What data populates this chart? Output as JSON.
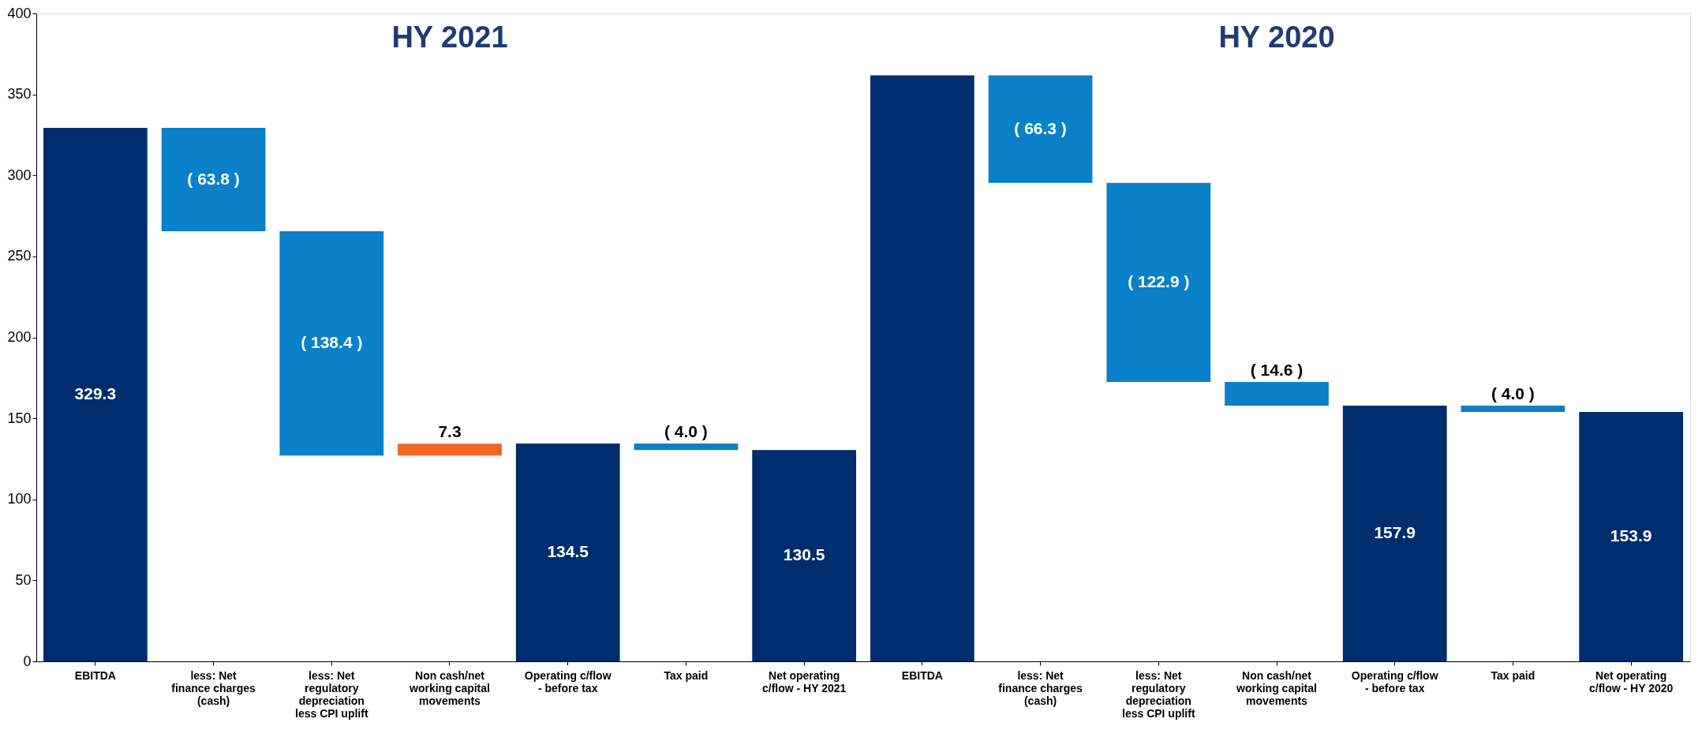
{
  "chart_data": {
    "type": "bar",
    "categories": [
      "EBITDA",
      "less: Net finance charges (cash)",
      "less: Net regulatory depreciation less CPI uplift",
      "Non cash/net working capital movements",
      "Operating c/flow - before tax",
      "Tax paid",
      "Net operating c/flow - HY 2021",
      "EBITDA",
      "less: Net finance charges (cash)",
      "less: Net regulatory depreciation less CPI uplift",
      "Non cash/net working capital movements",
      "Operating c/flow - before tax",
      "Tax paid",
      "Net operating c/flow - HY 2020"
    ],
    "values": [
      329.3,
      -63.8,
      -138.4,
      7.3,
      134.5,
      -4.0,
      130.5,
      361.7,
      -66.3,
      -122.9,
      -14.6,
      157.9,
      -4.0,
      153.9
    ],
    "base": [
      0,
      329.3,
      265.5,
      127.1,
      0,
      134.5,
      0,
      0,
      361.7,
      295.4,
      172.5,
      0,
      157.9,
      0
    ],
    "colors": [
      "#002d6e",
      "#0a80c8",
      "#0a80c8",
      "#f26522",
      "#002d6e",
      "#0a80c8",
      "#002d6e",
      "#002d6e",
      "#0a80c8",
      "#0a80c8",
      "#0a80c8",
      "#002d6e",
      "#0a80c8",
      "#002d6e"
    ],
    "value_labels": [
      "329.3",
      "( 63.8 )",
      "( 138.4 )",
      "7.3",
      "134.5",
      "( 4.0 )",
      "130.5",
      null,
      "( 66.3 )",
      "( 122.9 )",
      "( 14.6 )",
      "157.9",
      "( 4.0 )",
      "153.9"
    ],
    "ylim": [
      0,
      400
    ],
    "yticks": [
      0,
      50,
      100,
      150,
      200,
      250,
      300,
      350,
      400
    ],
    "grid": false,
    "annotations": [
      "HY 2021",
      "HY 2020"
    ]
  }
}
